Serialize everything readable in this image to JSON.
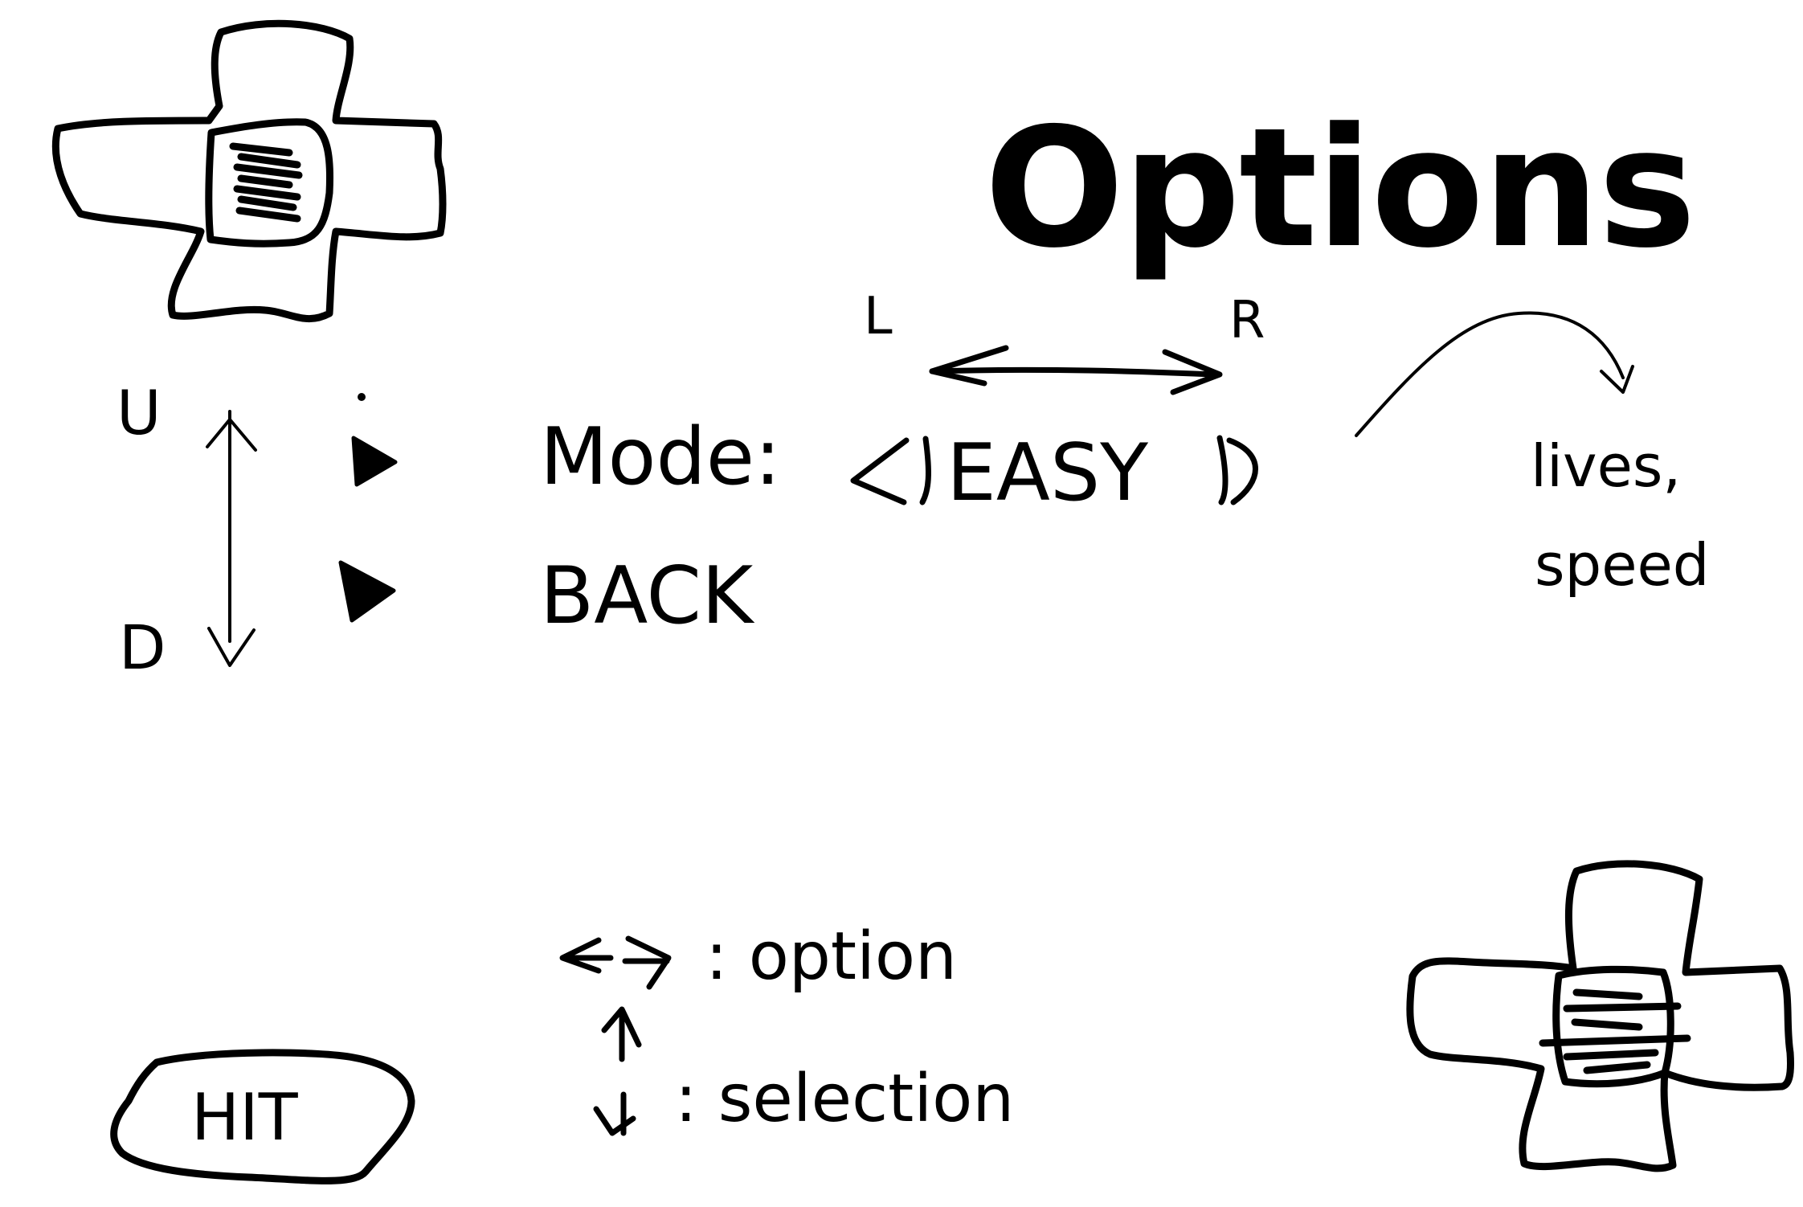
{
  "title": "Options",
  "shoulder_labels": {
    "left": "L",
    "right": "R"
  },
  "dpad_labels": {
    "up": "U",
    "down": "D"
  },
  "menu": {
    "mode_label": "Mode:",
    "mode_value": "EASY",
    "back_label": "BACK"
  },
  "note": {
    "line1": "lives,",
    "line2": "speed"
  },
  "hit_button": {
    "label": "HIT"
  },
  "legend": {
    "lr_symbol": "<->",
    "lr_text": ": option",
    "ud_text": ": selection"
  },
  "icons": {
    "dpad_top_left": "dpad-icon",
    "dpad_bottom_right": "dpad-icon",
    "cursor": "triangle-pointer-icon",
    "vertical_arrow": "double-arrow-icon",
    "horizontal_arrow": "double-arrow-icon"
  }
}
